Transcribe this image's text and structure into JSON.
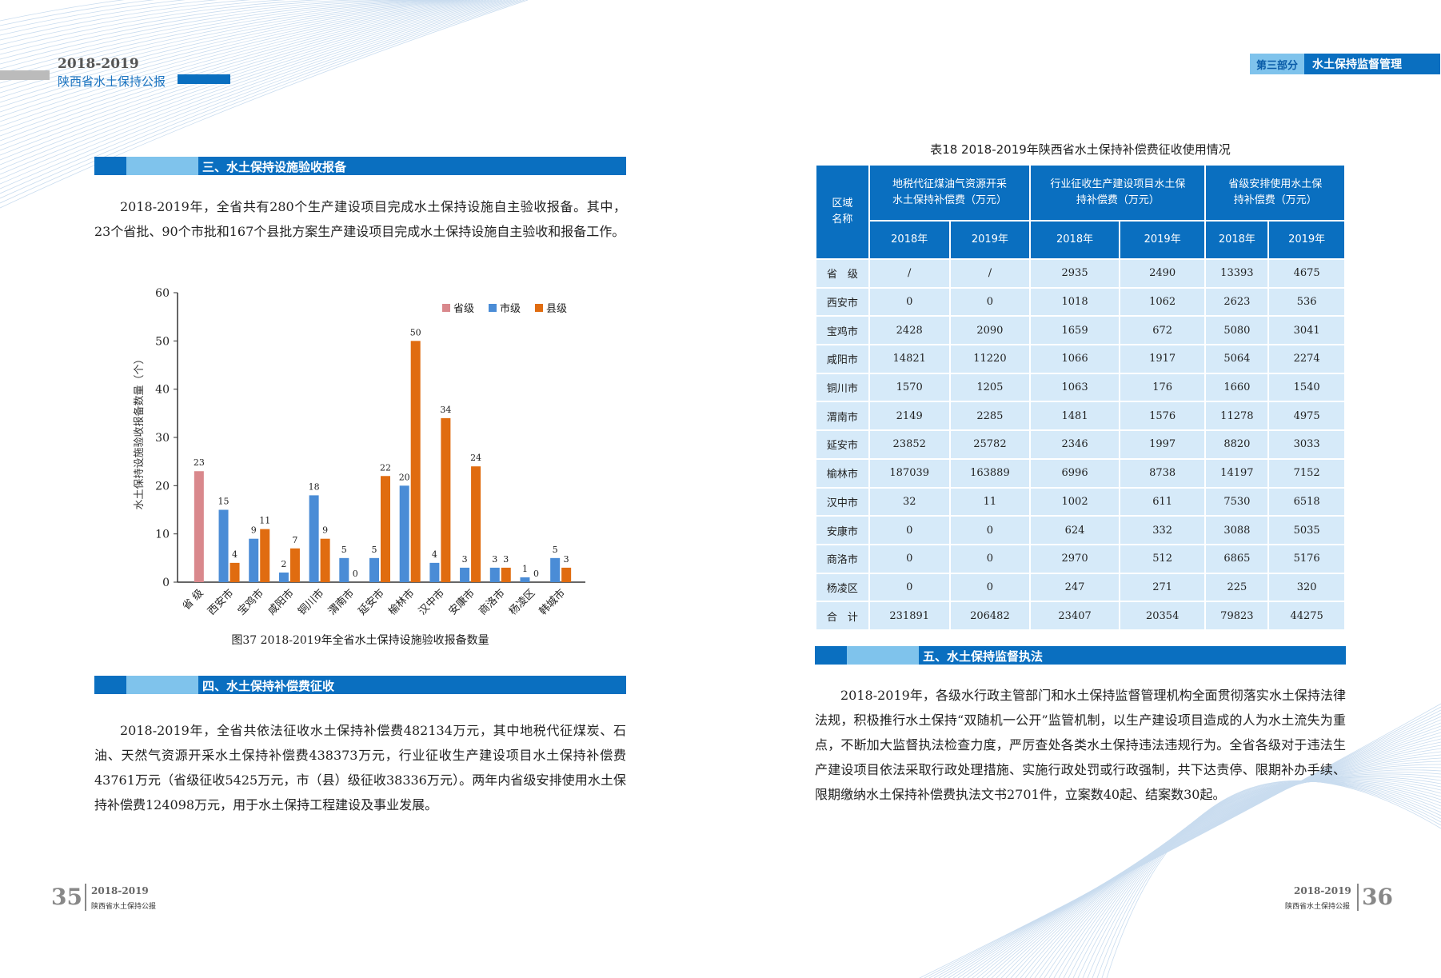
{
  "left_page": {
    "header": {
      "year": "2018-2019",
      "title": "陕西省水土保持公报"
    },
    "section3": {
      "title": "三、水土保持设施验收报备",
      "text": "2018-2019年，全省共有280个生产建设项目完成水土保持设施自主验收报备。其中，23个省批、90个市批和167个县批方案生产建设项目完成水土保持设施自主验收和报备工作。"
    },
    "figure_caption": "图37 2018-2019年全省水土保持设施验收报备数量",
    "section4": {
      "title": "四、水土保持补偿费征收",
      "text": "2018-2019年，全省共依法征收水土保持补偿费482134万元，其中地税代征煤炭、石油、天然气资源开采水土保持补偿费438373万元，行业征收生产建设项目水土保持补偿费43761万元（省级征收5425万元，市（县）级征收38336万元）。两年内省级安排使用水土保持补偿费124098万元，用于水土保持工程建设及事业发展。"
    },
    "footer": {
      "page": "35",
      "year": "2018-2019",
      "title": "陕西省水土保持公报"
    }
  },
  "chart_data": {
    "type": "bar",
    "title": "图37 2018-2019年全省水土保持设施验收报备数量",
    "ylabel": "水土保持设施验收报备数量（个）",
    "xlabel": "",
    "ylim": [
      0,
      60
    ],
    "yticks": [
      0,
      10,
      20,
      30,
      40,
      50,
      60
    ],
    "legend_position": "top-right",
    "categories": [
      "省 级",
      "西安市",
      "宝鸡市",
      "咸阳市",
      "铜川市",
      "渭南市",
      "延安市",
      "榆林市",
      "汉中市",
      "安康市",
      "商洛市",
      "杨凌区",
      "韩城市"
    ],
    "series": [
      {
        "name": "省级",
        "color": "#d9888c",
        "values": [
          23,
          null,
          null,
          null,
          null,
          null,
          null,
          null,
          null,
          null,
          null,
          null,
          null
        ]
      },
      {
        "name": "市级",
        "color": "#4a8cd6",
        "values": [
          null,
          15,
          9,
          2,
          18,
          5,
          5,
          20,
          4,
          3,
          3,
          1,
          5
        ]
      },
      {
        "name": "县级",
        "color": "#e06c10",
        "values": [
          null,
          4,
          11,
          7,
          9,
          0,
          22,
          50,
          34,
          24,
          3,
          0,
          3
        ]
      }
    ]
  },
  "right_page": {
    "header": {
      "part": "第三部分",
      "title": "水土保持监督管理"
    },
    "table": {
      "caption": "表18 2018-2019年陕西省水土保持补偿费征收使用情况",
      "region_header": "区域名称",
      "groups": [
        "地税代征煤油气资源开采水土保持补偿费（万元）",
        "行业征收生产建设项目水土保持补偿费（万元）",
        "省级安排使用水土保持补偿费（万元）"
      ],
      "years": [
        "2018年",
        "2019年",
        "2018年",
        "2019年",
        "2018年",
        "2019年"
      ],
      "rows": [
        [
          "省　级",
          "/",
          "/",
          "2935",
          "2490",
          "13393",
          "4675"
        ],
        [
          "西安市",
          "0",
          "0",
          "1018",
          "1062",
          "2623",
          "536"
        ],
        [
          "宝鸡市",
          "2428",
          "2090",
          "1659",
          "672",
          "5080",
          "3041"
        ],
        [
          "咸阳市",
          "14821",
          "11220",
          "1066",
          "1917",
          "5064",
          "2274"
        ],
        [
          "铜川市",
          "1570",
          "1205",
          "1063",
          "176",
          "1660",
          "1540"
        ],
        [
          "渭南市",
          "2149",
          "2285",
          "1481",
          "1576",
          "11278",
          "4975"
        ],
        [
          "延安市",
          "23852",
          "25782",
          "2346",
          "1997",
          "8820",
          "3033"
        ],
        [
          "榆林市",
          "187039",
          "163889",
          "6996",
          "8738",
          "14197",
          "7152"
        ],
        [
          "汉中市",
          "32",
          "11",
          "1002",
          "611",
          "7530",
          "6518"
        ],
        [
          "安康市",
          "0",
          "0",
          "624",
          "332",
          "3088",
          "5035"
        ],
        [
          "商洛市",
          "0",
          "0",
          "2970",
          "512",
          "6865",
          "5176"
        ],
        [
          "杨凌区",
          "0",
          "0",
          "247",
          "271",
          "225",
          "320"
        ],
        [
          "合　计",
          "231891",
          "206482",
          "23407",
          "20354",
          "79823",
          "44275"
        ]
      ]
    },
    "section5": {
      "title": "五、水土保持监督执法",
      "text": "2018-2019年，各级水行政主管部门和水土保持监督管理机构全面贯彻落实水土保持法律法规，积极推行水土保持“双随机一公开”监管机制，以生产建设项目造成的人为水土流失为重点，不断加大监督执法检查力度，严厉查处各类水土保持违法违规行为。全省各级对于违法生产建设项目依法采取行政处理措施、实施行政处罚或行政强制，共下达责停、限期补办手续、限期缴纳水土保持补偿费执法文书2701件，立案数40起、结案数30起。"
    },
    "footer": {
      "page": "36",
      "year": "2018-2019",
      "title": "陕西省水土保持公报"
    }
  }
}
